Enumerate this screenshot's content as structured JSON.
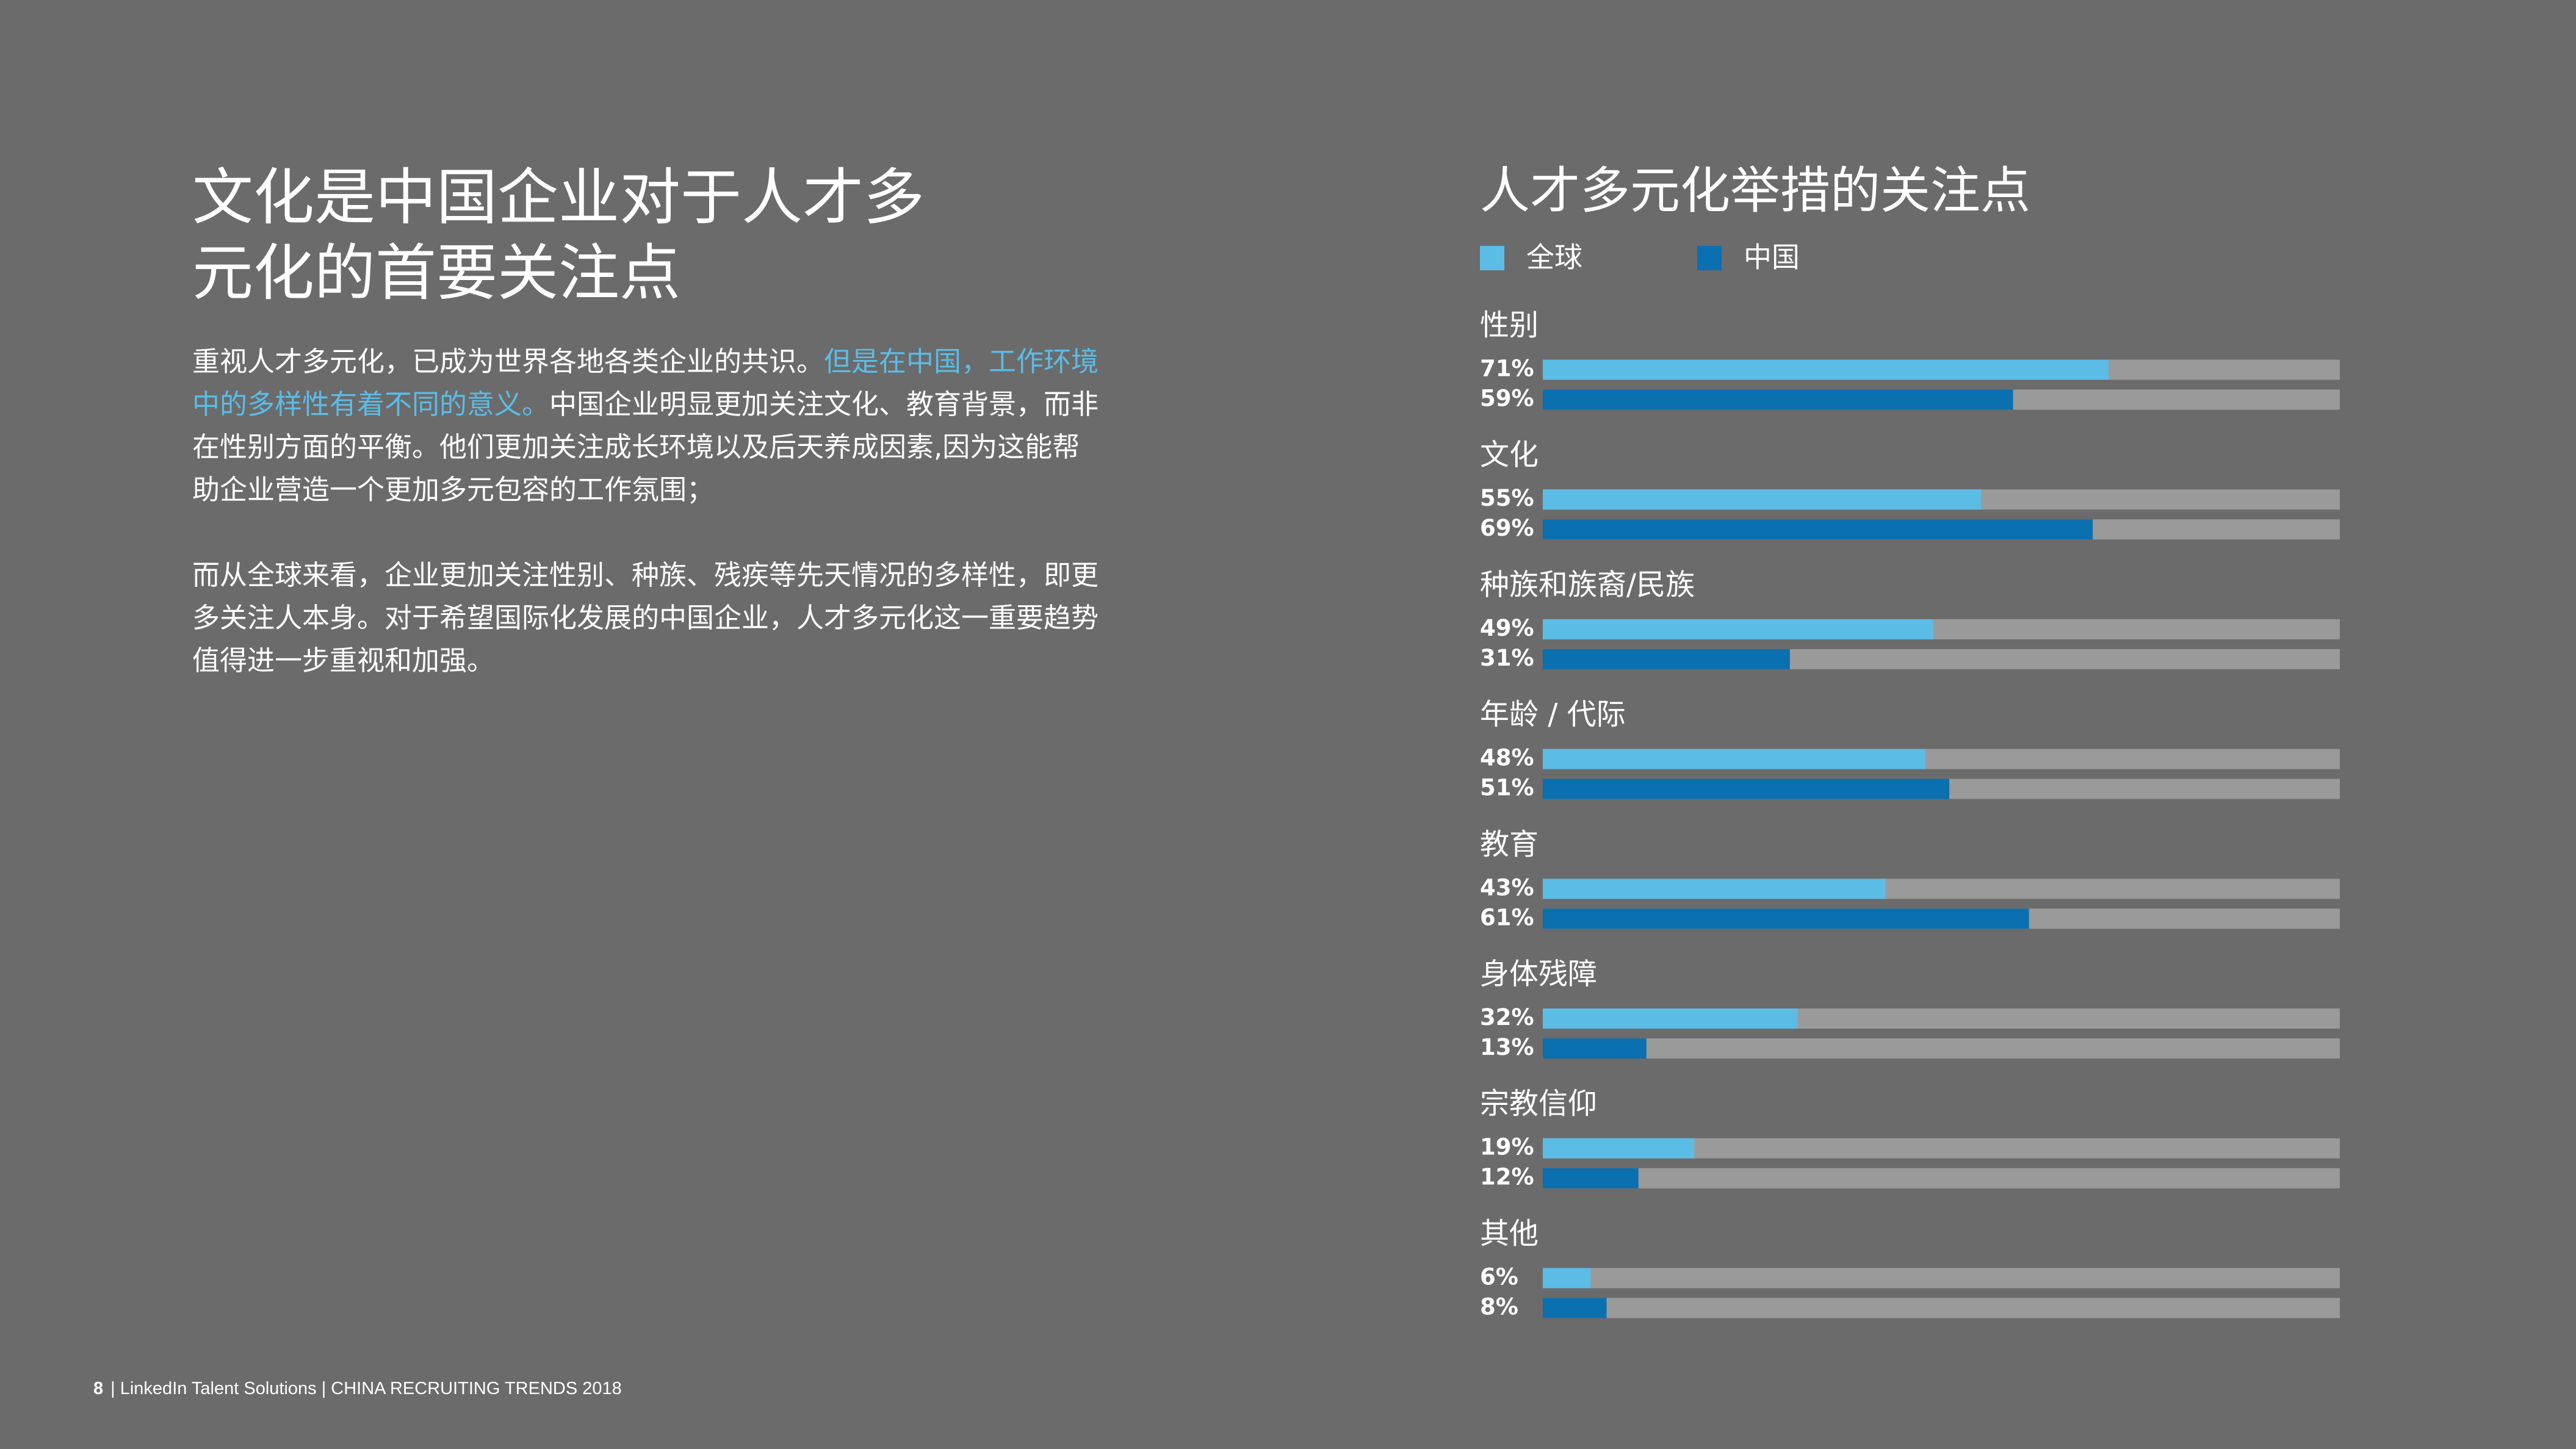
{
  "header": {
    "title": [
      "文化是中国企业对于人才多",
      "元化的首要关注点"
    ]
  },
  "body": {
    "paragraphs": [
      [
        "重视人才多元化，已成为世界各地各类企业的共识。",
        "但是在中国，工作环境中的多样性有着不同的意义。",
        "中国企业明显更加关注文化、教育背景，而非在性别方面的平衡。他们更加关注成长环境以及后天养成因素,因为这能帮助企业营造一个更加多元包容的工作氛围；"
      ],
      [
        "而从全球来看，企业更加关注性别、种族、残疾等先天情况的多样性，即更多关注人本身。对于希望国际化发展的中国企业，人才多元化这一重要趋势值得进一步重视和加强。"
      ]
    ]
  },
  "chart_data": {
    "type": "hbar",
    "title": "人才多元化举措的关注点",
    "categories": [
      "性别",
      "文化",
      "种族和族裔/民族",
      "年龄 / 代际",
      "教育",
      "身体残障",
      "宗教信仰",
      "其他"
    ],
    "series": [
      {
        "name": "全球",
        "color": "#5bbce6",
        "values": [
          71,
          55,
          49,
          48,
          43,
          32,
          19,
          6
        ],
        "value_labels": [
          "71%",
          "55%",
          "49%",
          "48%",
          "43%",
          "32%",
          "19%",
          "6%"
        ]
      },
      {
        "name": "中国",
        "color": "#0a70b0",
        "values": [
          59,
          69,
          31,
          51,
          61,
          13,
          12,
          8
        ],
        "value_labels": [
          "59%",
          "69%",
          "31%",
          "51%",
          "61%",
          "13%",
          "12%",
          "8%"
        ]
      }
    ],
    "xlim": [
      0,
      100
    ]
  },
  "footer": {
    "page": "8",
    "text": "| LinkedIn Talent Solutions | CHINA RECRUITING TRENDS 2018"
  }
}
